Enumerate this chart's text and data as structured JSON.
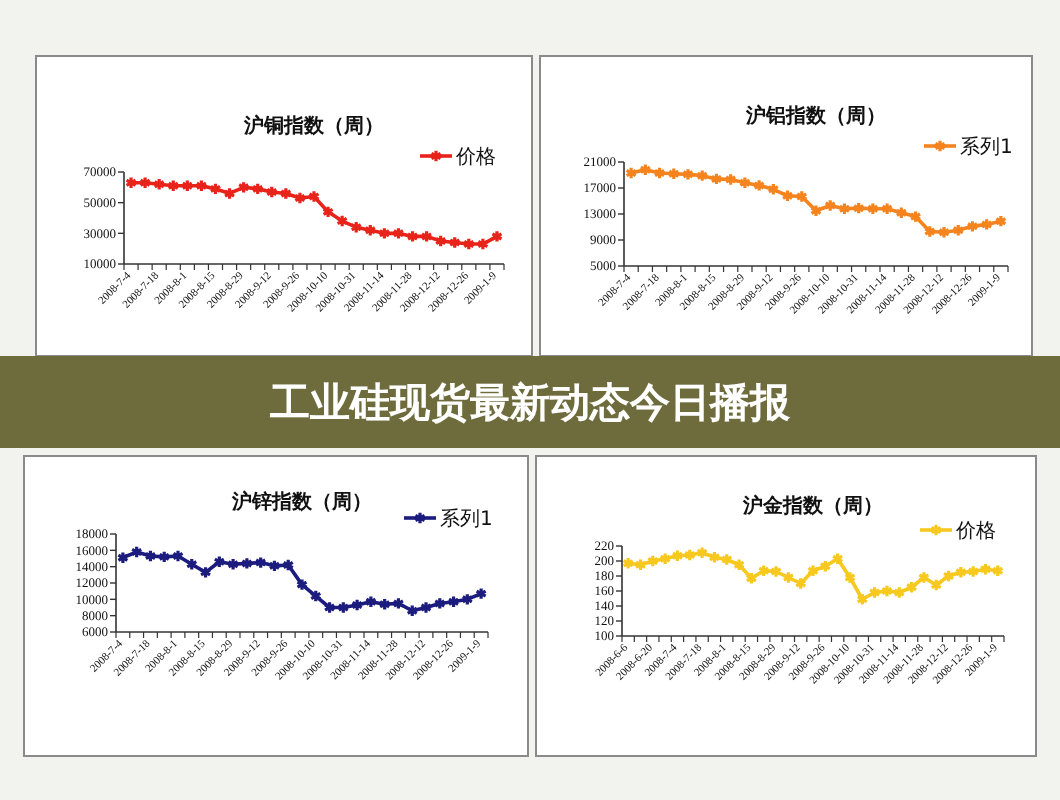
{
  "chart_data": [
    {
      "type": "line",
      "title": "沪铜指数（周）",
      "categories": [
        "2008-7-4",
        null,
        "2008-7-18",
        null,
        "2008-8-1",
        null,
        "2008-8-15",
        null,
        "2008-8-29",
        null,
        "2008-9-12",
        null,
        "2008-9-26",
        null,
        "2008-10-10",
        null,
        "2008-10-31",
        null,
        "2008-11-14",
        null,
        "2008-11-28",
        null,
        "2008-12-12",
        null,
        "2008-12-26",
        null,
        "2009-1-9"
      ],
      "series": [
        {
          "name": "价格",
          "color": "#e8231a",
          "values": [
            63000,
            63000,
            62000,
            61000,
            61000,
            61000,
            59000,
            56000,
            60000,
            59000,
            57000,
            56000,
            53000,
            54000,
            44000,
            38000,
            34000,
            32000,
            30000,
            30000,
            28000,
            28000,
            25000,
            24000,
            23000,
            23000,
            28000
          ]
        }
      ],
      "ylim": [
        10000,
        70000
      ],
      "yticks": [
        10000,
        30000,
        50000,
        70000
      ],
      "legend": "top right",
      "marker": "cross"
    },
    {
      "type": "line",
      "title": "沪铝指数（周）",
      "categories": [
        "2008-7-4",
        null,
        "2008-7-18",
        null,
        "2008-8-1",
        null,
        "2008-8-15",
        null,
        "2008-8-29",
        null,
        "2008-9-12",
        null,
        "2008-9-26",
        null,
        "2008-10-10",
        null,
        "2008-10-31",
        null,
        "2008-11-14",
        null,
        "2008-11-28",
        null,
        "2008-12-12",
        null,
        "2008-12-26",
        null,
        "2009-1-9"
      ],
      "series": [
        {
          "name": "系列1",
          "color": "#f5841f",
          "values": [
            19300,
            19800,
            19300,
            19200,
            19100,
            18900,
            18400,
            18300,
            17800,
            17400,
            16800,
            15800,
            15700,
            13500,
            14300,
            13800,
            13900,
            13800,
            13800,
            13200,
            12600,
            10300,
            10200,
            10500,
            11100,
            11400,
            11900
          ]
        }
      ],
      "ylim": [
        5000,
        21000
      ],
      "yticks": [
        5000,
        9000,
        13000,
        17000,
        21000
      ],
      "legend": "top right",
      "marker": "cross"
    },
    {
      "type": "other",
      "title": "工业硅现货最新动态今日播报"
    },
    {
      "type": "line",
      "title": "沪锌指数（周）",
      "categories": [
        "2008-7-4",
        null,
        "2008-7-18",
        null,
        "2008-8-1",
        null,
        "2008-8-15",
        null,
        "2008-8-29",
        null,
        "2008-9-12",
        null,
        "2008-9-26",
        null,
        "2008-10-10",
        null,
        "2008-10-31",
        null,
        "2008-11-14",
        null,
        "2008-11-28",
        null,
        "2008-12-12",
        null,
        "2008-12-26",
        null,
        "2009-1-9"
      ],
      "series": [
        {
          "name": "系列1",
          "color": "#1c1c7e",
          "values": [
            15100,
            15800,
            15300,
            15200,
            15300,
            14300,
            13300,
            14600,
            14300,
            14400,
            14500,
            14100,
            14200,
            11800,
            10400,
            9000,
            9000,
            9300,
            9700,
            9400,
            9500,
            8600,
            9000,
            9500,
            9700,
            10000,
            10700
          ]
        }
      ],
      "ylim": [
        6000,
        18000
      ],
      "yticks": [
        6000,
        8000,
        10000,
        12000,
        14000,
        16000,
        18000
      ],
      "legend": "top right",
      "marker": "cross"
    },
    {
      "type": "line",
      "title": "沪金指数（周）",
      "categories": [
        "2008-6-6",
        null,
        "2008-6-20",
        null,
        "2008-7-4",
        null,
        "2008-7-18",
        null,
        "2008-8-1",
        null,
        "2008-8-15",
        null,
        "2008-8-29",
        null,
        "2008-9-12",
        null,
        "2008-9-26",
        null,
        "2008-10-10",
        null,
        "2008-10-31",
        null,
        "2008-11-14",
        null,
        "2008-11-28",
        null,
        "2008-12-12",
        null,
        "2008-12-26",
        null,
        "2009-1-9"
      ],
      "series": [
        {
          "name": "价格",
          "color": "#f7c81e",
          "values": [
            197,
            195,
            200,
            203,
            207,
            208,
            211,
            205,
            202,
            195,
            177,
            187,
            186,
            178,
            170,
            187,
            193,
            203,
            178,
            149,
            158,
            160,
            158,
            165,
            178,
            168,
            180,
            185,
            186,
            189,
            187
          ]
        }
      ],
      "ylim": [
        100,
        220
      ],
      "yticks": [
        100,
        120,
        140,
        160,
        180,
        200,
        220
      ],
      "legend": "top right",
      "marker": "cross"
    }
  ]
}
